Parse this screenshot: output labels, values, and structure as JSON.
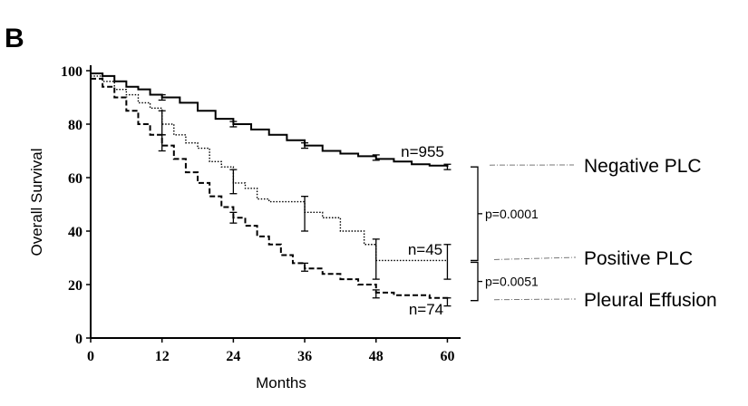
{
  "panel_label": "B",
  "chart_data": {
    "type": "line",
    "title": "",
    "xlabel": "Months",
    "ylabel": "Overall Survival",
    "xlim": [
      0,
      61
    ],
    "ylim": [
      0,
      100
    ],
    "xticks": [
      0,
      12,
      24,
      36,
      48,
      60
    ],
    "yticks": [
      0,
      20,
      40,
      60,
      80,
      100
    ],
    "grid": false,
    "series": [
      {
        "name": "Negative PLC",
        "style": "solid",
        "n_label": "n=955",
        "x": [
          0,
          2,
          4,
          6,
          8,
          10,
          12,
          15,
          18,
          21,
          24,
          27,
          30,
          33,
          36,
          39,
          42,
          45,
          48,
          51,
          54,
          57,
          60
        ],
        "values": [
          99,
          98,
          96,
          94,
          93,
          91,
          90,
          88,
          85,
          82,
          80,
          78,
          76,
          74,
          72,
          70,
          69,
          68,
          67,
          66,
          65,
          64.5,
          64
        ],
        "error_bars": [
          {
            "x": 12,
            "low": 89,
            "high": 91
          },
          {
            "x": 24,
            "low": 79,
            "high": 81
          },
          {
            "x": 36,
            "low": 71,
            "high": 73
          },
          {
            "x": 48,
            "low": 66.5,
            "high": 68.5
          },
          {
            "x": 60,
            "low": 63,
            "high": 65
          }
        ]
      },
      {
        "name": "Positive PLC",
        "style": "dotted",
        "n_label": "n=45",
        "x": [
          0,
          2,
          4,
          6,
          8,
          10,
          12,
          14,
          16,
          18,
          20,
          22,
          24,
          26,
          28,
          30,
          33,
          36,
          39,
          42,
          46,
          48,
          60
        ],
        "values": [
          98,
          96,
          93,
          91,
          88,
          86,
          80,
          76,
          73,
          71,
          66,
          64,
          58,
          56,
          52,
          51,
          51,
          47,
          45,
          40,
          35,
          29,
          29
        ],
        "error_bars": [
          {
            "x": 12,
            "low": 76,
            "high": 85
          },
          {
            "x": 24,
            "low": 54,
            "high": 63
          },
          {
            "x": 36,
            "low": 40,
            "high": 53
          },
          {
            "x": 48,
            "low": 22,
            "high": 37
          },
          {
            "x": 60,
            "low": 22,
            "high": 35
          }
        ]
      },
      {
        "name": "Pleural Effusion",
        "style": "dashed",
        "n_label": "n=74",
        "x": [
          0,
          2,
          4,
          6,
          8,
          10,
          12,
          14,
          16,
          18,
          20,
          22,
          24,
          26,
          28,
          30,
          32,
          34,
          36,
          39,
          42,
          45,
          48,
          51,
          54,
          57,
          60
        ],
        "values": [
          97,
          94,
          90,
          85,
          80,
          76,
          72,
          67,
          62,
          58,
          53,
          49,
          45,
          42,
          38,
          35,
          31,
          28,
          26,
          24,
          22,
          20,
          17,
          16,
          16,
          15,
          14
        ],
        "error_bars": [
          {
            "x": 12,
            "low": 70,
            "high": 76
          },
          {
            "x": 24,
            "low": 43,
            "high": 47
          },
          {
            "x": 36,
            "low": 25,
            "high": 28
          },
          {
            "x": 48,
            "low": 15,
            "high": 18
          },
          {
            "x": 60,
            "low": 12,
            "high": 15
          }
        ]
      }
    ],
    "annotations": {
      "p_values": [
        "p=0.0001",
        "p=0.0051"
      ],
      "legend": [
        "Negative PLC",
        "Positive PLC",
        "Pleural Effusion"
      ]
    }
  }
}
